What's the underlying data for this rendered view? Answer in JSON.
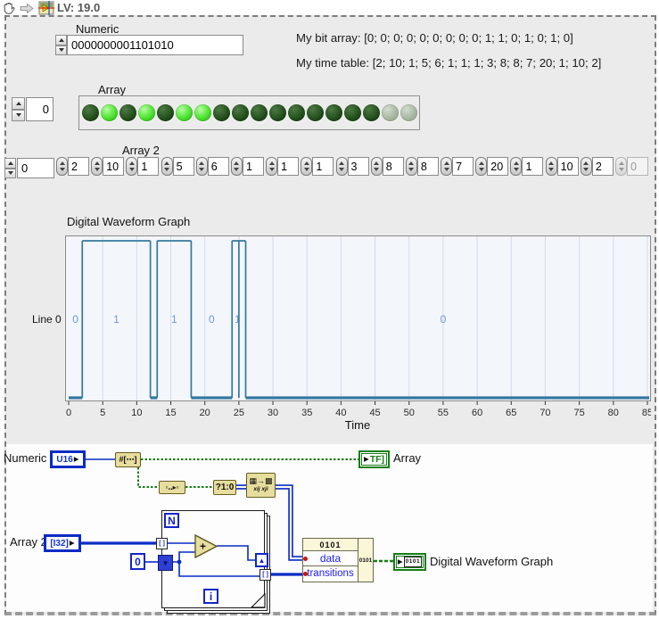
{
  "toolbar": {
    "title": "LV: 19.0"
  },
  "front_panel": {
    "numeric_label": "Numeric",
    "numeric_value": "0000000001101010",
    "bit_array_text": "My bit array: [0; 0; 0; 0; 0; 0; 0; 0; 0; 1; 1; 0; 1; 0; 1; 0]",
    "time_table_text": "My time table: [2; 10; 1; 5; 6; 1; 1; 1; 3; 8; 8; 7; 20; 1; 10; 2]",
    "array_label": "Array",
    "array_index": "0",
    "led_states": [
      0,
      1,
      0,
      1,
      0,
      1,
      1,
      0,
      0,
      0,
      0,
      0,
      0,
      0,
      0,
      0
    ],
    "led_disabled_count": 2,
    "array2_label": "Array 2",
    "array2_index": "0",
    "array2_values": [
      "2",
      "10",
      "1",
      "5",
      "6",
      "1",
      "1",
      "1",
      "3",
      "8",
      "8",
      "7",
      "20",
      "1",
      "10",
      "2"
    ],
    "array2_disabled_value": "0"
  },
  "chart_data": {
    "type": "digital-waveform",
    "title": "Digital Waveform Graph",
    "xlabel": "Time",
    "line_label": "Line 0",
    "xlim": [
      0,
      86
    ],
    "x_ticks": [
      0,
      5,
      10,
      15,
      20,
      25,
      30,
      35,
      40,
      45,
      50,
      55,
      60,
      65,
      70,
      75,
      80,
      85
    ],
    "segments": [
      {
        "v": 0,
        "t0": 0,
        "t1": 2
      },
      {
        "v": 1,
        "t0": 2,
        "t1": 12
      },
      {
        "v": 0,
        "t0": 12,
        "t1": 13
      },
      {
        "v": 1,
        "t0": 13,
        "t1": 18
      },
      {
        "v": 0,
        "t0": 18,
        "t1": 24
      },
      {
        "v": 1,
        "t0": 24,
        "t1": 26
      },
      {
        "v": 0,
        "t0": 26,
        "t1": 86
      }
    ],
    "edges": [
      2,
      12,
      13,
      18,
      24,
      25,
      26
    ],
    "labels": [
      {
        "t": 1,
        "text": "0"
      },
      {
        "t": 7,
        "text": "1"
      },
      {
        "t": 15.5,
        "text": "1"
      },
      {
        "t": 21,
        "text": "0"
      },
      {
        "t": 24.8,
        "text": "1"
      },
      {
        "t": 55,
        "text": "0"
      }
    ],
    "colors": {
      "trace": "#35789f",
      "grid": "#d8d8f0",
      "plot_bg": "#f3f6fb",
      "value_label": "#6b9bd2",
      "axis_text": "#2b2b2b"
    }
  },
  "block_diagram": {
    "numeric_label": "Numeric",
    "u16": "U16",
    "arrow": "▶",
    "n2ba_glyph": "#[⋯]",
    "tf": "TF]",
    "array_label": "Array",
    "reverse_glyph": "▫‥▸▫",
    "select_glyph": "?1:0",
    "transpose_row1": "▦→▩",
    "transpose_row2": "xij xji",
    "array2_label": "Array 2",
    "i32": "[I32]",
    "n": "N",
    "i": "i",
    "const_zero": "0",
    "plus": "+",
    "tunnel": "[ ]",
    "sr_down": "▼",
    "sr_up": "▲",
    "build_title": "0101",
    "build_out": "0101",
    "data_label": "data",
    "transitions_label": "transitions",
    "dwg_glyph": "0101",
    "dwg_label": "Digital Waveform Graph"
  }
}
